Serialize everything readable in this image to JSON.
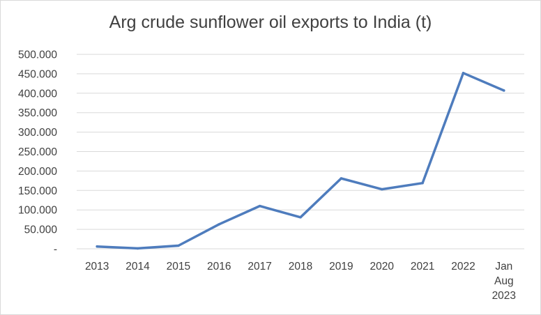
{
  "chart_data": {
    "type": "line",
    "title": "Arg crude sunflower oil exports to India (t)",
    "xlabel": "",
    "ylabel": "",
    "categories": [
      [
        "2013"
      ],
      [
        "2014"
      ],
      [
        "2015"
      ],
      [
        "2016"
      ],
      [
        "2017"
      ],
      [
        "2018"
      ],
      [
        "2019"
      ],
      [
        "2020"
      ],
      [
        "2021"
      ],
      [
        "2022"
      ],
      [
        "Jan",
        "Aug",
        "2023"
      ]
    ],
    "series": [
      {
        "values": [
          6000,
          1000,
          8000,
          63000,
          110000,
          81000,
          181000,
          153000,
          169000,
          452000,
          407000
        ],
        "color": "#4e7cbd"
      }
    ],
    "ylim": [
      0,
      500000
    ],
    "yticks": [
      0,
      50000,
      100000,
      150000,
      200000,
      250000,
      300000,
      350000,
      400000,
      450000,
      500000
    ],
    "ytick_labels": [
      "-",
      "50.000",
      "100.000",
      "150.000",
      "200.000",
      "250.000",
      "300.000",
      "350.000",
      "400.000",
      "450.000",
      "500.000"
    ],
    "grid": true,
    "gridline_color": "#d9d9d9",
    "legend": "none"
  }
}
